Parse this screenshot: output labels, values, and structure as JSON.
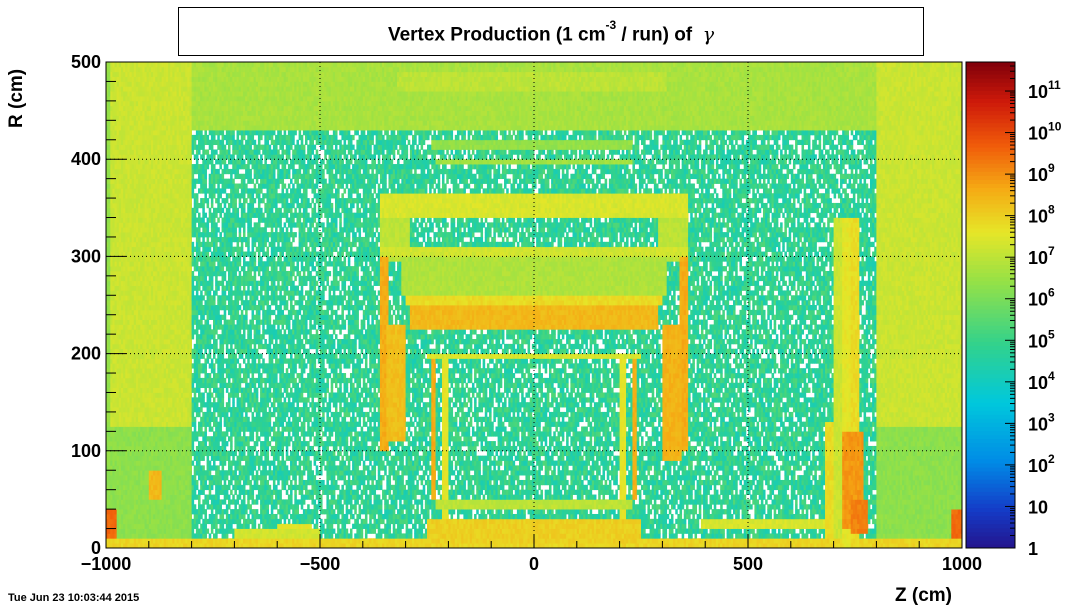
{
  "title": {
    "prefix": "Vertex Production (1 cm",
    "exponent": "-3",
    "suffix": " / run) of",
    "particle": "γ"
  },
  "x_axis_title": "Z (cm)",
  "y_axis_title": "R (cm)",
  "timestamp": "Tue Jun 23 10:03:44 2015",
  "chart_data": {
    "type": "heatmap",
    "title": "Vertex Production (1 cm-3 / run) of γ",
    "xlabel": "Z (cm)",
    "ylabel": "R (cm)",
    "xlim": [
      -1000,
      1000
    ],
    "ylim": [
      0,
      500
    ],
    "x_ticks": [
      -1000,
      -500,
      0,
      500,
      1000
    ],
    "x_tick_labels": [
      "−1000",
      "−500",
      "0",
      "500",
      "1000"
    ],
    "y_ticks": [
      0,
      100,
      200,
      300,
      400,
      500
    ],
    "y_tick_labels": [
      "0",
      "100",
      "200",
      "300",
      "400",
      "500"
    ],
    "grid": true,
    "log_scale_z": true,
    "zlim": [
      1,
      500000000000
    ],
    "colorbar_ticks": [
      {
        "value": 1,
        "base": "1",
        "exp": ""
      },
      {
        "value": 10,
        "base": "10",
        "exp": ""
      },
      {
        "value": 100,
        "base": "10",
        "exp": "2"
      },
      {
        "value": 1000,
        "base": "10",
        "exp": "3"
      },
      {
        "value": 10000,
        "base": "10",
        "exp": "4"
      },
      {
        "value": 100000,
        "base": "10",
        "exp": "5"
      },
      {
        "value": 1000000,
        "base": "10",
        "exp": "6"
      },
      {
        "value": 10000000,
        "base": "10",
        "exp": "7"
      },
      {
        "value": 100000000,
        "base": "10",
        "exp": "8"
      },
      {
        "value": 1000000000,
        "base": "10",
        "exp": "9"
      },
      {
        "value": 10000000000,
        "base": "10",
        "exp": "10"
      },
      {
        "value": 100000000000,
        "base": "10",
        "exp": "11"
      }
    ],
    "background_log_value": 4.8,
    "regions": [
      {
        "z": [
          -1000,
          1000
        ],
        "r": [
          430,
          500
        ],
        "logv": 6.7
      },
      {
        "z": [
          -1000,
          -800
        ],
        "r": [
          125,
          500
        ],
        "logv": 7.2
      },
      {
        "z": [
          800,
          1000
        ],
        "r": [
          125,
          500
        ],
        "logv": 7.2
      },
      {
        "z": [
          -1000,
          -990
        ],
        "r": [
          0,
          500
        ],
        "logv": 6.4
      },
      {
        "z": [
          -1000,
          -800
        ],
        "r": [
          0,
          125
        ],
        "logv": 6.3
      },
      {
        "z": [
          800,
          1000
        ],
        "r": [
          0,
          125
        ],
        "logv": 6.3
      },
      {
        "z": [
          -320,
          310
        ],
        "r": [
          468,
          490
        ],
        "logv": 7.0
      },
      {
        "z": [
          -240,
          230
        ],
        "r": [
          408,
          418
        ],
        "logv": 6.4
      },
      {
        "z": [
          -230,
          230
        ],
        "r": [
          395,
          401
        ],
        "logv": 6.6
      },
      {
        "z": [
          -360,
          360
        ],
        "r": [
          340,
          365
        ],
        "logv": 7.4
      },
      {
        "z": [
          -360,
          -290
        ],
        "r": [
          295,
          340
        ],
        "logv": 7.0
      },
      {
        "z": [
          290,
          360
        ],
        "r": [
          295,
          340
        ],
        "logv": 7.0
      },
      {
        "z": [
          -360,
          360
        ],
        "r": [
          300,
          312
        ],
        "logv": 7.3
      },
      {
        "z": [
          -310,
          310
        ],
        "r": [
          262,
          300
        ],
        "logv": 6.8
      },
      {
        "z": [
          -300,
          300
        ],
        "r": [
          248,
          258
        ],
        "logv": 7.8
      },
      {
        "z": [
          -290,
          290
        ],
        "r": [
          225,
          248
        ],
        "logv": 8.4
      },
      {
        "z": [
          -360,
          -340
        ],
        "r": [
          100,
          300
        ],
        "logv": 8.6
      },
      {
        "z": [
          340,
          360
        ],
        "r": [
          100,
          300
        ],
        "logv": 8.6
      },
      {
        "z": [
          -345,
          -300
        ],
        "r": [
          110,
          230
        ],
        "logv": 8.3
      },
      {
        "z": [
          300,
          345
        ],
        "r": [
          90,
          230
        ],
        "logv": 8.5
      },
      {
        "z": [
          -240,
          -230
        ],
        "r": [
          50,
          200
        ],
        "logv": 8.6
      },
      {
        "z": [
          230,
          240
        ],
        "r": [
          50,
          200
        ],
        "logv": 8.6
      },
      {
        "z": [
          -215,
          -200
        ],
        "r": [
          0,
          200
        ],
        "logv": 7.6
      },
      {
        "z": [
          200,
          215
        ],
        "r": [
          0,
          200
        ],
        "logv": 7.6
      },
      {
        "z": [
          -250,
          250
        ],
        "r": [
          195,
          200
        ],
        "logv": 7.4
      },
      {
        "z": [
          -230,
          230
        ],
        "r": [
          40,
          50
        ],
        "logv": 7.0
      },
      {
        "z": [
          -600,
          -520
        ],
        "r": [
          18,
          25
        ],
        "logv": 7.6
      },
      {
        "z": [
          -1000,
          1000
        ],
        "r": [
          0,
          8
        ],
        "logv": 7.9
      },
      {
        "z": [
          -700,
          -500
        ],
        "r": [
          10,
          20
        ],
        "logv": 7.3
      },
      {
        "z": [
          -250,
          250
        ],
        "r": [
          5,
          30
        ],
        "logv": 8.0
      },
      {
        "z": [
          -900,
          -870
        ],
        "r": [
          50,
          80
        ],
        "logv": 8.4
      },
      {
        "z": [
          -1000,
          -975
        ],
        "r": [
          8,
          38
        ],
        "logv": 9.5
      },
      {
        "z": [
          975,
          1000
        ],
        "r": [
          8,
          38
        ],
        "logv": 9.5
      },
      {
        "z": [
          700,
          720
        ],
        "r": [
          10,
          340
        ],
        "logv": 7.2
      },
      {
        "z": [
          720,
          740
        ],
        "r": [
          0,
          340
        ],
        "logv": 7.6
      },
      {
        "z": [
          740,
          760
        ],
        "r": [
          0,
          340
        ],
        "logv": 7.8
      },
      {
        "z": [
          720,
          770
        ],
        "r": [
          20,
          120
        ],
        "logv": 8.9
      },
      {
        "z": [
          740,
          780
        ],
        "r": [
          15,
          50
        ],
        "logv": 9.2
      },
      {
        "z": [
          390,
          700
        ],
        "r": [
          18,
          28
        ],
        "logv": 7.4
      },
      {
        "z": [
          680,
          700
        ],
        "r": [
          10,
          130
        ],
        "logv": 7.8
      }
    ]
  }
}
